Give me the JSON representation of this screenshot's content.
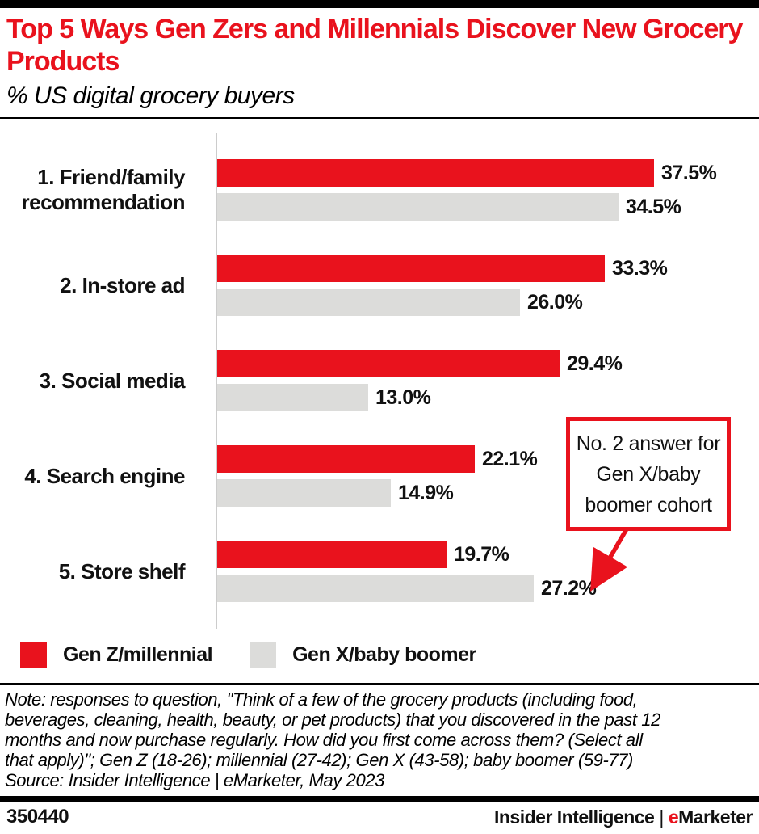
{
  "header": {
    "title": "Top 5 Ways Gen Zers and Millennials Discover New Grocery Products",
    "subtitle": "% US digital grocery buyers"
  },
  "colors": {
    "accent_red": "#e9121d",
    "bar_gray": "#dcdcda",
    "axis_gray": "#cccccc",
    "black": "#000000"
  },
  "chart_data": {
    "type": "bar",
    "orientation": "horizontal",
    "title": "Top 5 Ways Gen Zers and Millennials Discover New Grocery Products",
    "subtitle": "% US digital grocery buyers",
    "categories": [
      "1. Friend/family recommendation",
      "2. In-store ad",
      "3. Social media",
      "4. Search engine",
      "5. Store shelf"
    ],
    "series": [
      {
        "name": "Gen Z/millennial",
        "color": "#e9121d",
        "values": [
          37.5,
          33.3,
          29.4,
          22.1,
          19.7
        ]
      },
      {
        "name": "Gen X/baby boomer",
        "color": "#dcdcda",
        "values": [
          34.5,
          26.0,
          13.0,
          14.9,
          27.2
        ]
      }
    ],
    "value_suffix": "%",
    "xlim": [
      0,
      41.5
    ],
    "grid": false,
    "legend_position": "bottom",
    "annotation": {
      "lines": [
        "No. 2 answer for",
        "Gen X/baby",
        "boomer cohort"
      ],
      "points_to": "Gen X/baby boomer value 27.2% on 5. Store shelf"
    }
  },
  "note": {
    "lines": [
      "Note: responses to question, \"Think of a few of the grocery products (including food,",
      "beverages, cleaning, health, beauty, or pet products) that you discovered in the past 12",
      "months and now purchase regularly. How did you first come across them? (Select all",
      "that apply)\"; Gen Z (18-26); millennial (27-42); Gen X (43-58); baby boomer (59-77)",
      "Source: Insider Intelligence | eMarketer, May 2023"
    ]
  },
  "footer": {
    "chart_id": "350440",
    "brand": {
      "name": "Insider Intelligence",
      "sep": "|",
      "e_letter": "e",
      "rest": "Marketer"
    }
  }
}
